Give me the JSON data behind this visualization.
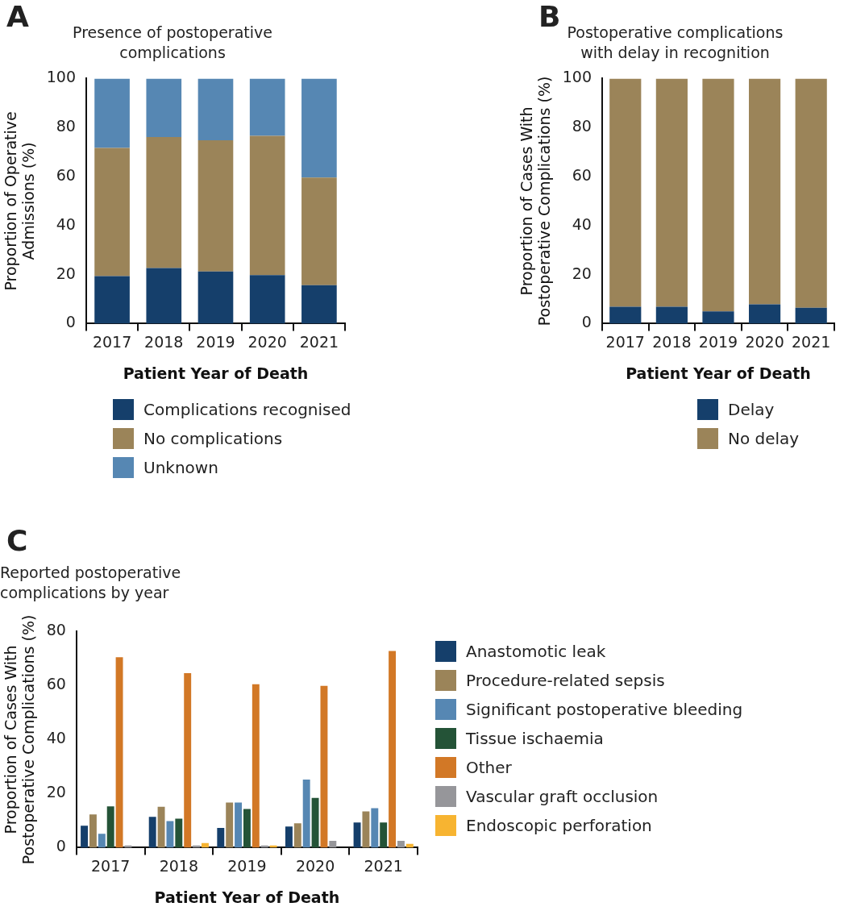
{
  "chart_data": [
    {
      "type": "bar",
      "title": "Presence of postoperative complications",
      "xlabel": "Patient Year of Death",
      "ylabel": "Proportion of Operative Admissions (%)",
      "annotations": [
        "A"
      ],
      "categories": [
        "2017",
        "2018",
        "2019",
        "2020",
        "2021"
      ],
      "stacked": true,
      "ylim": [
        0,
        100
      ],
      "yticks": [
        0,
        20,
        40,
        60,
        80,
        100
      ],
      "legend": "bottom",
      "series": [
        {
          "name": "Complications recognised",
          "color": "#153f6b",
          "values": [
            19.4,
            22.7,
            21.3,
            19.8,
            15.7
          ]
        },
        {
          "name": "No complications",
          "color": "#9b8459",
          "values": [
            52.3,
            53.4,
            53.5,
            56.8,
            43.9
          ]
        },
        {
          "name": "Unknown",
          "color": "#5687b3",
          "values": [
            28.3,
            23.9,
            25.2,
            23.4,
            40.4
          ]
        }
      ]
    },
    {
      "type": "bar",
      "title": "Postoperative complications with delay in recognition",
      "xlabel": "Patient Year of Death",
      "ylabel": "Proportion of Cases With Postoperative Complications (%)",
      "annotations": [
        "B"
      ],
      "categories": [
        "2017",
        "2018",
        "2019",
        "2020",
        "2021"
      ],
      "stacked": true,
      "ylim": [
        0,
        100
      ],
      "yticks": [
        0,
        20,
        40,
        60,
        80,
        100
      ],
      "legend": "bottom",
      "series": [
        {
          "name": "Delay",
          "color": "#153f6b",
          "values": [
            6.9,
            6.9,
            5.0,
            7.9,
            6.5
          ]
        },
        {
          "name": "No delay",
          "color": "#9b8459",
          "values": [
            93.1,
            93.1,
            95.0,
            92.1,
            93.5
          ]
        }
      ]
    },
    {
      "type": "bar",
      "title": "Reported postoperative complications by year",
      "xlabel": "Patient Year of Death",
      "ylabel": "Proportion of Cases With Postoperative Complications (%)",
      "annotations": [
        "C"
      ],
      "categories": [
        "2017",
        "2018",
        "2019",
        "2020",
        "2021"
      ],
      "ylim": [
        0,
        80
      ],
      "yticks": [
        0,
        20,
        40,
        60,
        80
      ],
      "legend": "right",
      "series": [
        {
          "name": "Anastomotic leak",
          "color": "#153f6b",
          "values": [
            8.1,
            11.4,
            7.3,
            7.8,
            9.3
          ]
        },
        {
          "name": "Procedure-related sepsis",
          "color": "#9b8459",
          "values": [
            12.3,
            15.1,
            16.7,
            9.0,
            13.4
          ]
        },
        {
          "name": "Significant postoperative bleeding",
          "color": "#5687b3",
          "values": [
            5.1,
            9.8,
            16.7,
            25.2,
            14.6
          ]
        },
        {
          "name": "Tissue ischaemia",
          "color": "#245337",
          "values": [
            15.3,
            10.7,
            14.3,
            18.4,
            9.3
          ]
        },
        {
          "name": "Other",
          "color": "#d27826",
          "values": [
            70.5,
            64.6,
            60.5,
            59.9,
            72.8
          ]
        },
        {
          "name": "Vascular graft occlusion",
          "color": "#96969a",
          "values": [
            0.8,
            0.8,
            0.8,
            2.5,
            2.5
          ]
        },
        {
          "name": "Endoscopic perforation",
          "color": "#f7b431",
          "values": [
            0,
            1.7,
            0.8,
            0,
            1.4
          ]
        }
      ]
    }
  ]
}
